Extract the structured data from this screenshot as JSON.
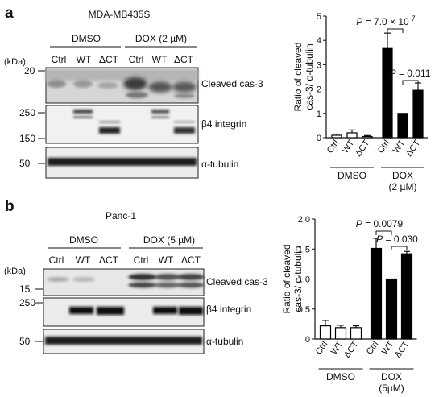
{
  "panel_a": {
    "letter": "a",
    "cell_line": "MDA-MB435S",
    "kda": "(kDa)",
    "group_dmso": "DMSO",
    "group_dox": "DOX (2 µM)",
    "lanes": [
      "Ctrl",
      "WT",
      "ΔCT",
      "Ctrl",
      "WT",
      "ΔCT"
    ],
    "blots": [
      {
        "label": "Cleaved cas-3",
        "markers": [
          "20"
        ]
      },
      {
        "label": "β4 integrin",
        "markers": [
          "250",
          "150"
        ]
      },
      {
        "label": "α-tubulin",
        "markers": [
          "50"
        ]
      }
    ]
  },
  "panel_b": {
    "letter": "b",
    "cell_line": "Panc-1",
    "kda": "(kDa)",
    "group_dmso": "DMSO",
    "group_dox": "DOX (5 µM)",
    "lanes": [
      "Ctrl",
      "WT",
      "ΔCT",
      "Ctrl",
      "WT",
      "ΔCT"
    ],
    "blots": [
      {
        "label": "Cleaved cas-3",
        "markers": [
          "15"
        ]
      },
      {
        "label": "β4 integrin",
        "markers": [
          "250"
        ]
      },
      {
        "label": "α-tubulin",
        "markers": [
          "50"
        ]
      }
    ]
  },
  "chart_data": [
    {
      "type": "bar",
      "categories": [
        "Ctrl",
        "WT",
        "ΔCT",
        "Ctrl",
        "WT",
        "ΔCT"
      ],
      "groups": [
        "DMSO",
        "DOX\n(2 µM)"
      ],
      "values": [
        0.1,
        0.2,
        0.05,
        3.7,
        1.0,
        1.95
      ],
      "errors": [
        0.05,
        0.12,
        0.04,
        0.6,
        0.0,
        0.3
      ],
      "fill": [
        "white",
        "white",
        "white",
        "black",
        "black",
        "black"
      ],
      "ylabel": "Ratio of cleaved\ncas-3/ α-tubulin",
      "ylim": [
        0,
        5
      ],
      "yticks": [
        "0",
        "1",
        "2",
        "3",
        "4",
        "5"
      ],
      "annotations": [
        {
          "text": "P = 7.0 × 10",
          "sup": "-7",
          "from": 3,
          "to": 4
        },
        {
          "text": "P = 0.011",
          "sup": "",
          "from": 4,
          "to": 5
        }
      ]
    },
    {
      "type": "bar",
      "categories": [
        "Ctrl",
        "WT",
        "ΔCT",
        "Ctrl",
        "WT",
        "ΔCT"
      ],
      "groups": [
        "DMSO",
        "DOX\n(5µM)"
      ],
      "values": [
        0.22,
        0.19,
        0.19,
        1.51,
        1.0,
        1.42
      ],
      "errors": [
        0.09,
        0.04,
        0.03,
        0.17,
        0.0,
        0.04
      ],
      "fill": [
        "white",
        "white",
        "white",
        "black",
        "black",
        "black"
      ],
      "ylabel": "Ratio of cleaved\ncas-3/ α-tubulin",
      "ylim": [
        0,
        2.0
      ],
      "yticks": [
        "0",
        "0.5",
        "1.0",
        "1.5",
        "2.0"
      ],
      "annotations": [
        {
          "text": "P = 0.0079",
          "sup": "",
          "from": 3,
          "to": 4
        },
        {
          "text": "P = 0.030",
          "sup": "",
          "from": 4,
          "to": 5
        }
      ]
    }
  ]
}
